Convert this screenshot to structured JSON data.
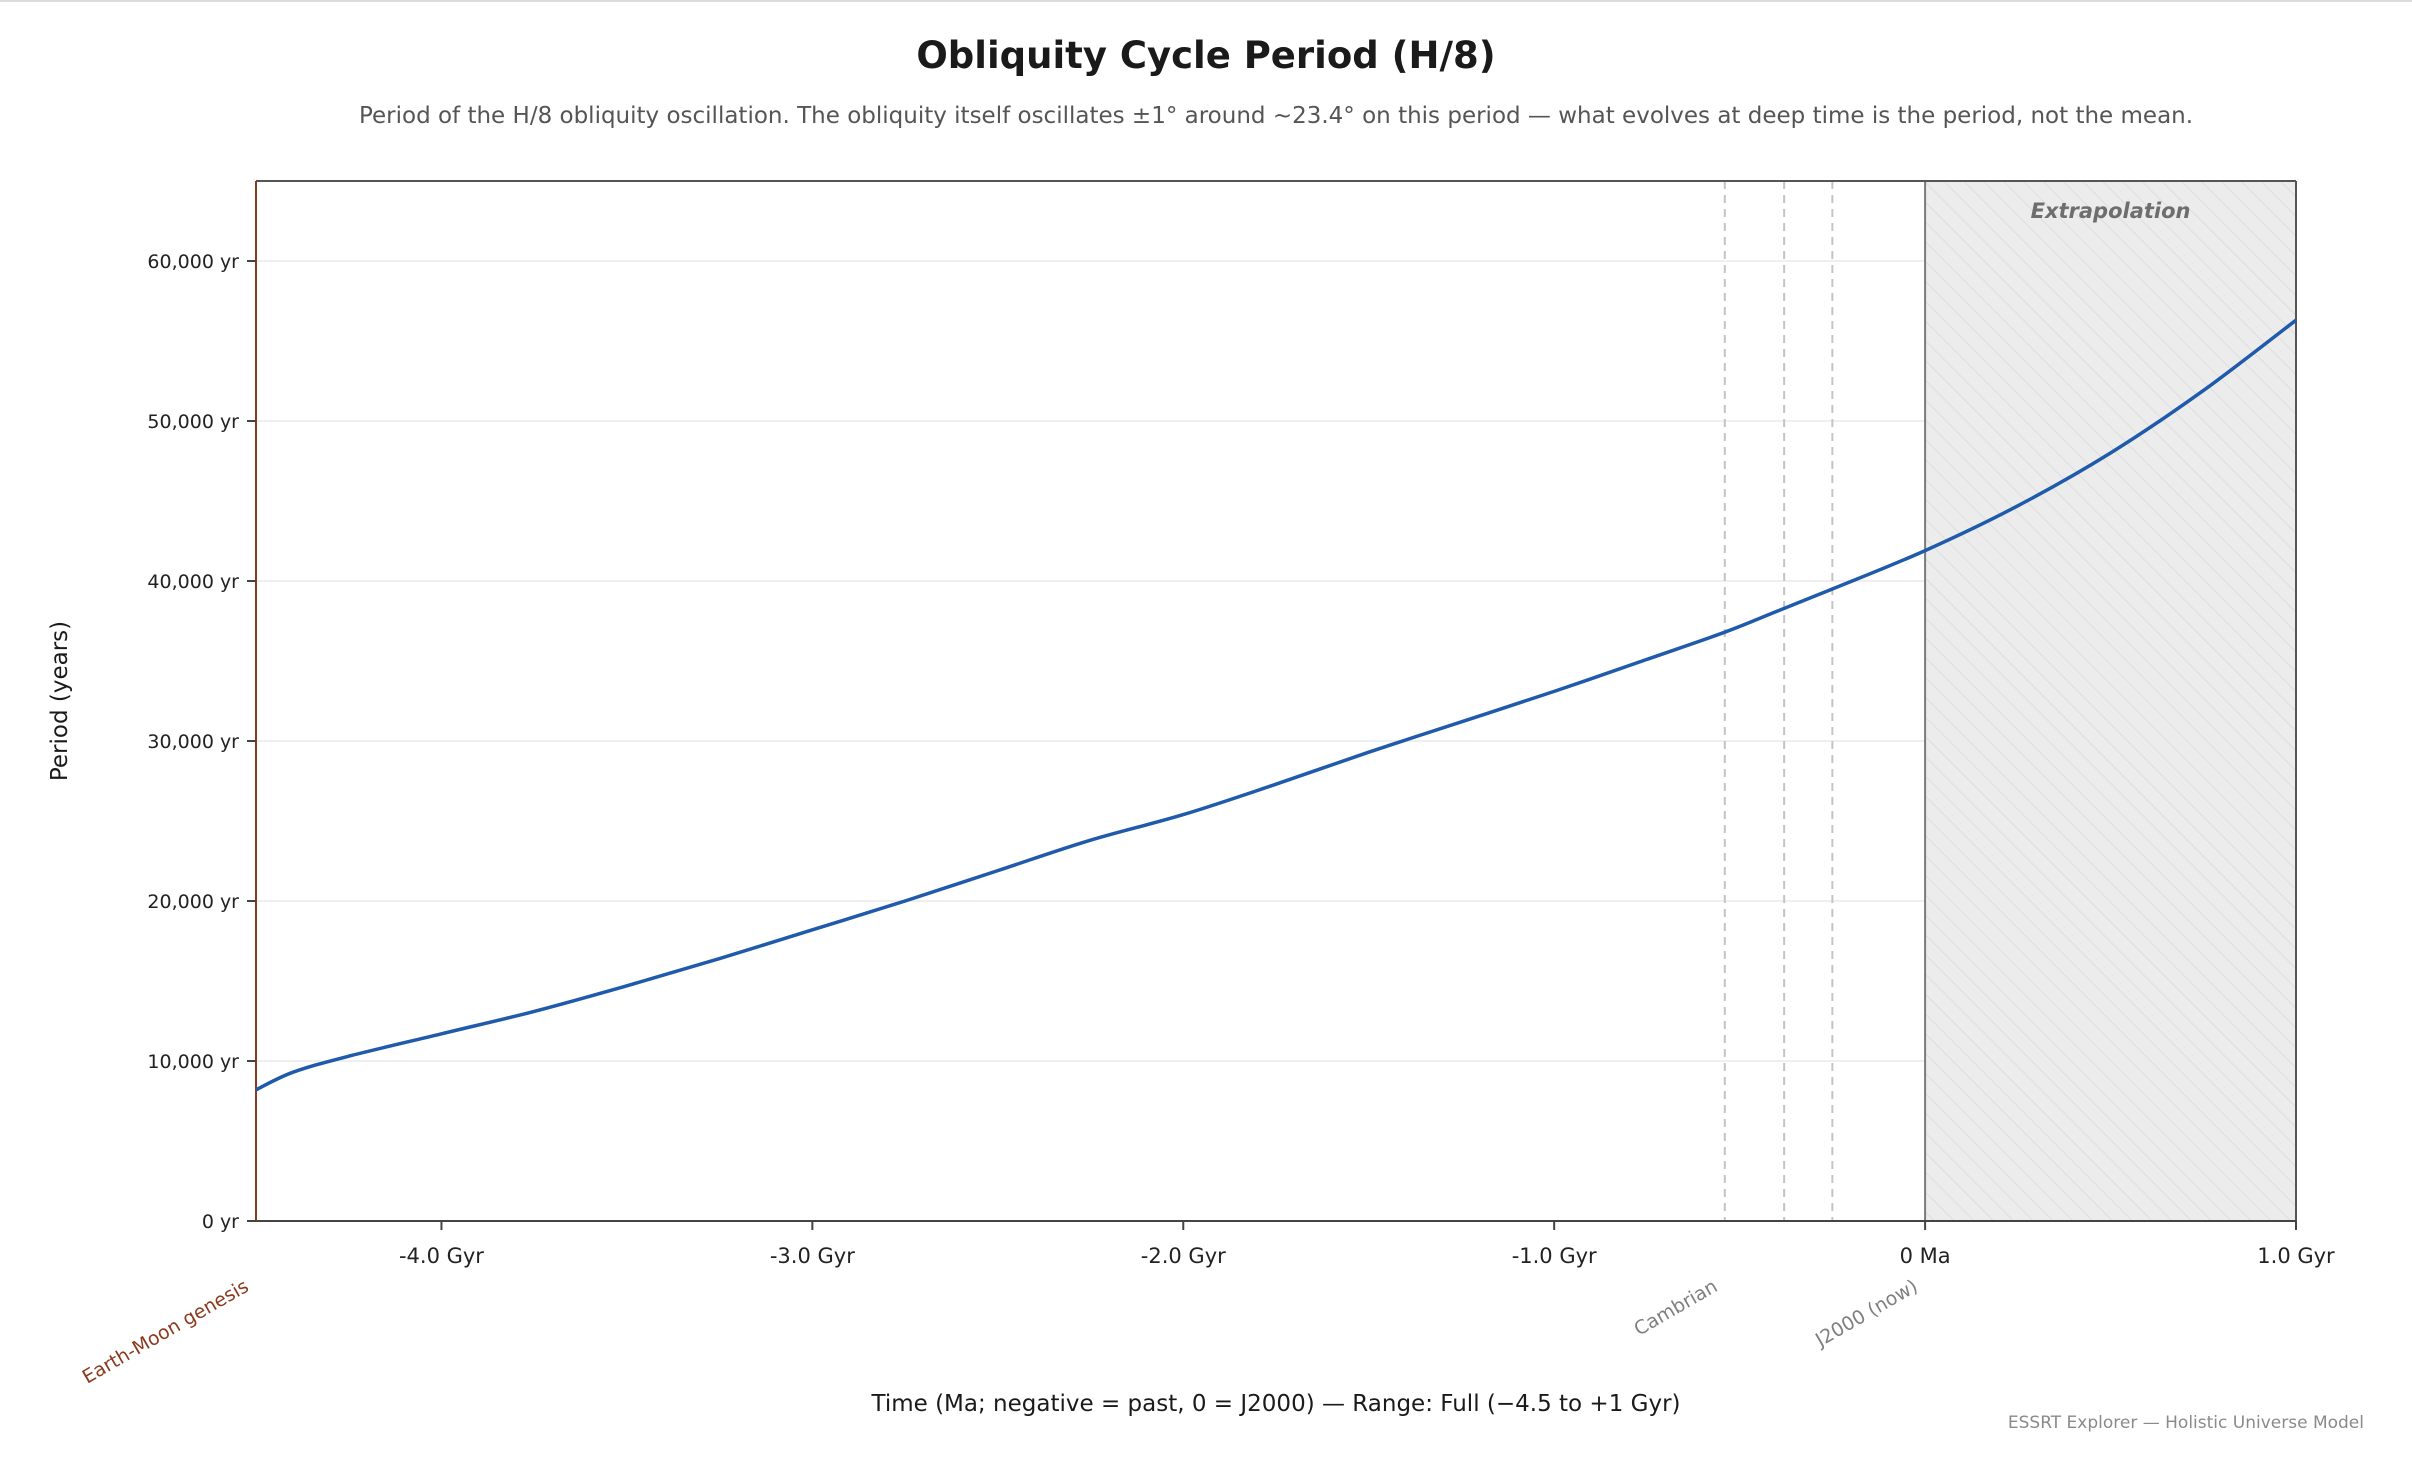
{
  "header": {
    "title": "Obliquity Cycle Period (H/8)",
    "subtitle": "Period of the H/8 obliquity oscillation. The obliquity itself oscillates ±1° around ~23.4° on this period — what evolves at deep time is the period, not the mean."
  },
  "footer": {
    "note": "ESSRT Explorer — Holistic Universe Model"
  },
  "chart_data": {
    "type": "line",
    "title": "Obliquity Cycle Period (H/8)",
    "subtitle": "Period of the H/8 obliquity oscillation. The obliquity itself oscillates ±1° around ~23.4° on this period — what evolves at deep time is the period, not the mean.",
    "xlabel": "Time (Ma; negative = past, 0 = J2000) — Range: Full (−4.5 to +1 Gyr)",
    "ylabel": "Period (years)",
    "xlim": [
      -4500,
      1000
    ],
    "ylim": [
      0,
      65000
    ],
    "x_unit": "Ma",
    "y_unit": "years",
    "grid": "horizontal",
    "x_ticks": [
      {
        "value": -4000,
        "label": "-4.0 Gyr"
      },
      {
        "value": -3000,
        "label": "-3.0 Gyr"
      },
      {
        "value": -2000,
        "label": "-2.0 Gyr"
      },
      {
        "value": -1000,
        "label": "-1.0 Gyr"
      },
      {
        "value": 0,
        "label": "0 Ma"
      },
      {
        "value": 1000,
        "label": "1.0 Gyr"
      }
    ],
    "y_ticks": [
      {
        "value": 0,
        "label": "0 yr"
      },
      {
        "value": 10000,
        "label": "10,000 yr"
      },
      {
        "value": 20000,
        "label": "20,000 yr"
      },
      {
        "value": 30000,
        "label": "30,000 yr"
      },
      {
        "value": 40000,
        "label": "40,000 yr"
      },
      {
        "value": 50000,
        "label": "50,000 yr"
      },
      {
        "value": 60000,
        "label": "60,000 yr"
      }
    ],
    "series": [
      {
        "color": "#1f5aab",
        "x": [
          -4500,
          -4400,
          -4250,
          -4000,
          -3750,
          -3500,
          -3250,
          -3000,
          -2750,
          -2500,
          -2250,
          -2000,
          -1750,
          -1500,
          -1250,
          -1000,
          -750,
          -540,
          -400,
          -250,
          0,
          250,
          500,
          750,
          1000
        ],
        "y": [
          8200,
          9300,
          10300,
          11700,
          13100,
          14700,
          16400,
          18200,
          20000,
          21900,
          23800,
          25400,
          27300,
          29300,
          31200,
          33100,
          35100,
          36800,
          38100,
          39500,
          41900,
          44700,
          48000,
          51900,
          56300
        ]
      }
    ],
    "extrapolation_region": {
      "from": 0,
      "to": 1000,
      "label": "Extrapolation"
    },
    "markers": [
      {
        "x": -540,
        "label": "Cambrian",
        "style": "dashed"
      },
      {
        "x": -380,
        "label": "",
        "style": "dashed"
      },
      {
        "x": -250,
        "label": "",
        "style": "dashed"
      },
      {
        "x": 0,
        "label": "J2000 (now)",
        "style": "solid"
      },
      {
        "x": -4500,
        "label": "Earth-Moon genesis",
        "style": "axis",
        "color": "#8b3a1e"
      }
    ]
  }
}
